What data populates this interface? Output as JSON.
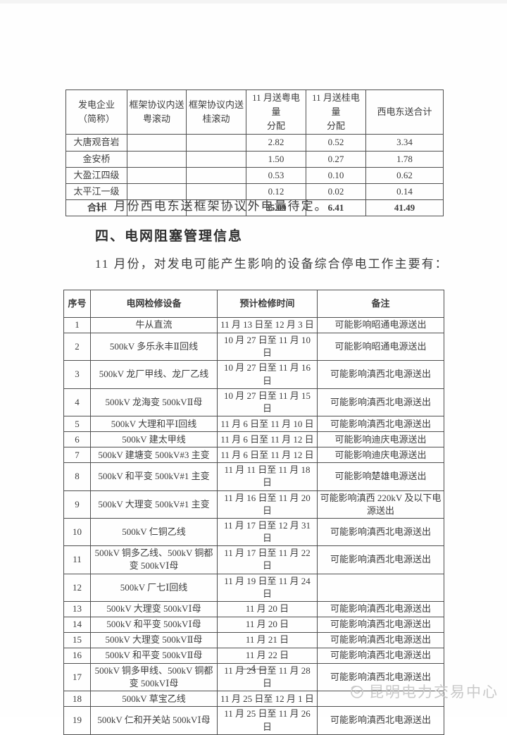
{
  "colors": {
    "ink": "#3c3c3c",
    "watermark": "#c9c9c9",
    "border": "#4f4f4f"
  },
  "paragraphs": {
    "framework_note": "11 月份西电东送框架协议外电量待定。",
    "outage_intro": "11 月份，对发电可能产生影响的设备综合停电工作主要有："
  },
  "section": {
    "heading": "四、电网阻塞管理信息"
  },
  "allocation_table": {
    "headers": [
      "发电企业\n（简称）",
      "框架协议内送\n粤滚动",
      "框架协议内送\n桂滚动",
      "11 月送粤电量\n分配",
      "11 月送桂电量\n分配",
      "西电东送合计"
    ],
    "rows": [
      [
        "大唐观音岩",
        "",
        "",
        "2.82",
        "0.52",
        "3.34"
      ],
      [
        "金安桥",
        "",
        "",
        "1.50",
        "0.27",
        "1.78"
      ],
      [
        "大盈江四级",
        "",
        "",
        "0.53",
        "0.10",
        "0.62"
      ],
      [
        "太平江一级",
        "",
        "",
        "0.12",
        "0.02",
        "0.14"
      ]
    ],
    "total_row": [
      "合计",
      "",
      "",
      "35.09",
      "6.41",
      "41.49"
    ]
  },
  "maintenance_table": {
    "headers": [
      "序号",
      "电网检修设备",
      "预计检修时间",
      "备注"
    ],
    "rows": [
      [
        "1",
        "牛从直流",
        "11 月 13 日至 12 月 3 日",
        "可能影响昭通电源送出"
      ],
      [
        "2",
        "500kV 多乐永丰Ⅱ回线",
        "10 月 27 日至 11 月 10 日",
        "可能影响昭通电源送出"
      ],
      [
        "3",
        "500kV 龙厂甲线、龙厂乙线",
        "10 月 27 日至 11 月 16 日",
        "可能影响滇西北电源送出"
      ],
      [
        "4",
        "500kV 龙海变 500kVⅡ母",
        "10 月 27 日至 11 月 15 日",
        "可能影响滇西北电源送出"
      ],
      [
        "5",
        "500kV 大理和平Ⅰ回线",
        "11 月 6 日至 11 月 10 日",
        "可能影响滇西北电源送出"
      ],
      [
        "6",
        "500kV 建太甲线",
        "11 月 6 日至 11 月 12 日",
        "可能影响迪庆电源送出"
      ],
      [
        "7",
        "500kV 建塘变 500kV#3 主变",
        "11 月 6 日至 11 月 12 日",
        "可能影响迪庆电源送出"
      ],
      [
        "8",
        "500kV 和平变 500kV#1 主变",
        "11 月 11 日至 11 月 18 日",
        "可能影响楚雄电源送出"
      ],
      [
        "9",
        "500kV 大理变 500kV#1 主变",
        "11 月 16 日至 11 月 20 日",
        "可能影响滇西 220kV 及以下电源送出"
      ],
      [
        "10",
        "500kV 仁铜乙线",
        "11 月 17 日至 12 月 31 日",
        "可能影响滇西北电源送出"
      ],
      [
        "11",
        "500kV 铜多乙线、500kV 铜都变 500kVⅠ母",
        "11 月 17 日至 11 月 22 日",
        "可能影响滇西北电源送出"
      ],
      [
        "12",
        "500kV 厂七Ⅰ回线",
        "11 月 19 日至 11 月 24 日",
        ""
      ],
      [
        "13",
        "500kV 大理变 500kVⅠ母",
        "11 月 20 日",
        "可能影响滇西北电源送出"
      ],
      [
        "14",
        "500kV 和平变 500kVⅠ母",
        "11 月 20 日",
        "可能影响滇西北电源送出"
      ],
      [
        "15",
        "500kV 大理变 500kVⅡ母",
        "11 月 21 日",
        "可能影响滇西北电源送出"
      ],
      [
        "16",
        "500kV 和平变 500kVⅡ母",
        "11 月 22 日",
        "可能影响滇西北电源送出"
      ],
      [
        "17",
        "500kV 铜多甲线、500kV 铜都变 500kVⅠ母",
        "11 月 23 日至 11 月 28 日",
        "可能影响滇西北电源送出"
      ],
      [
        "18",
        "500kV 草宝乙线",
        "11 月 25 日至 12 月 1 日",
        ""
      ],
      [
        "19",
        "500kV 仁和开关站 500kVⅠ母",
        "11 月 25 日至 11 月 26 日",
        "可能影响滇西北电源送出"
      ]
    ]
  },
  "footer": {
    "page_label": "—4—",
    "watermark": "昆明电力交易中心"
  }
}
